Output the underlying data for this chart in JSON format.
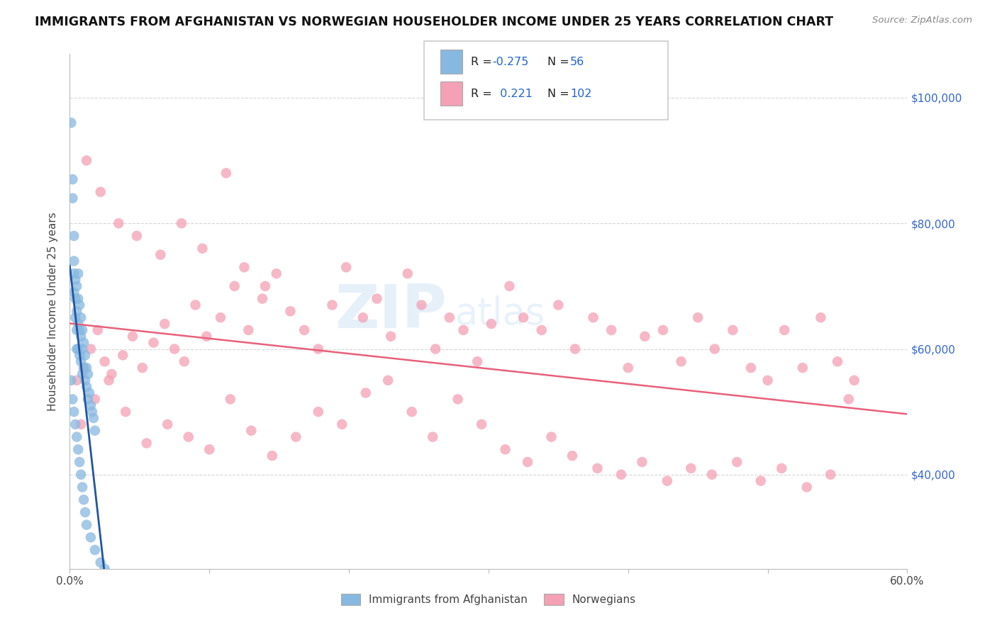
{
  "title": "IMMIGRANTS FROM AFGHANISTAN VS NORWEGIAN HOUSEHOLDER INCOME UNDER 25 YEARS CORRELATION CHART",
  "source": "Source: ZipAtlas.com",
  "ylabel": "Householder Income Under 25 years",
  "xmin": 0.0,
  "xmax": 0.6,
  "ymin": 25000,
  "ymax": 107000,
  "yticks": [
    40000,
    60000,
    80000,
    100000
  ],
  "ytick_labels": [
    "$40,000",
    "$60,000",
    "$80,000",
    "$100,000"
  ],
  "blue_color": "#87b8e0",
  "pink_color": "#f4a0b5",
  "blue_line_color": "#2155a0",
  "pink_line_color": "#e8607a",
  "watermark_zip": "ZIP",
  "watermark_atlas": "atlas",
  "background_color": "#ffffff",
  "grid_color": "#cccccc",
  "blue_scatter_x": [
    0.001,
    0.002,
    0.002,
    0.003,
    0.003,
    0.003,
    0.003,
    0.004,
    0.004,
    0.004,
    0.005,
    0.005,
    0.005,
    0.005,
    0.006,
    0.006,
    0.006,
    0.006,
    0.007,
    0.007,
    0.007,
    0.008,
    0.008,
    0.008,
    0.009,
    0.009,
    0.009,
    0.01,
    0.01,
    0.011,
    0.011,
    0.012,
    0.012,
    0.013,
    0.013,
    0.014,
    0.015,
    0.016,
    0.017,
    0.018,
    0.001,
    0.002,
    0.003,
    0.004,
    0.005,
    0.006,
    0.007,
    0.008,
    0.009,
    0.01,
    0.011,
    0.012,
    0.015,
    0.018,
    0.022,
    0.025
  ],
  "blue_scatter_y": [
    96000,
    87000,
    84000,
    78000,
    74000,
    72000,
    69000,
    71000,
    68000,
    65000,
    70000,
    66000,
    63000,
    60000,
    72000,
    68000,
    64000,
    60000,
    67000,
    63000,
    59000,
    65000,
    62000,
    58000,
    63000,
    60000,
    56000,
    61000,
    57000,
    59000,
    55000,
    57000,
    54000,
    56000,
    52000,
    53000,
    51000,
    50000,
    49000,
    47000,
    55000,
    52000,
    50000,
    48000,
    46000,
    44000,
    42000,
    40000,
    38000,
    36000,
    34000,
    32000,
    30000,
    28000,
    26000,
    25000
  ],
  "pink_scatter_x": [
    0.005,
    0.01,
    0.015,
    0.02,
    0.025,
    0.03,
    0.038,
    0.045,
    0.052,
    0.06,
    0.068,
    0.075,
    0.082,
    0.09,
    0.098,
    0.108,
    0.118,
    0.128,
    0.138,
    0.148,
    0.158,
    0.168,
    0.178,
    0.188,
    0.198,
    0.21,
    0.22,
    0.23,
    0.242,
    0.252,
    0.262,
    0.272,
    0.282,
    0.292,
    0.302,
    0.315,
    0.325,
    0.338,
    0.35,
    0.362,
    0.375,
    0.388,
    0.4,
    0.412,
    0.425,
    0.438,
    0.45,
    0.462,
    0.475,
    0.488,
    0.5,
    0.512,
    0.525,
    0.538,
    0.55,
    0.562,
    0.008,
    0.018,
    0.028,
    0.04,
    0.055,
    0.07,
    0.085,
    0.1,
    0.115,
    0.13,
    0.145,
    0.162,
    0.178,
    0.195,
    0.212,
    0.228,
    0.245,
    0.26,
    0.278,
    0.295,
    0.312,
    0.328,
    0.345,
    0.36,
    0.378,
    0.395,
    0.41,
    0.428,
    0.445,
    0.46,
    0.478,
    0.495,
    0.51,
    0.528,
    0.545,
    0.558,
    0.012,
    0.022,
    0.035,
    0.048,
    0.065,
    0.08,
    0.095,
    0.112,
    0.125,
    0.14
  ],
  "pink_scatter_y": [
    55000,
    57000,
    60000,
    63000,
    58000,
    56000,
    59000,
    62000,
    57000,
    61000,
    64000,
    60000,
    58000,
    67000,
    62000,
    65000,
    70000,
    63000,
    68000,
    72000,
    66000,
    63000,
    60000,
    67000,
    73000,
    65000,
    68000,
    62000,
    72000,
    67000,
    60000,
    65000,
    63000,
    58000,
    64000,
    70000,
    65000,
    63000,
    67000,
    60000,
    65000,
    63000,
    57000,
    62000,
    63000,
    58000,
    65000,
    60000,
    63000,
    57000,
    55000,
    63000,
    57000,
    65000,
    58000,
    55000,
    48000,
    52000,
    55000,
    50000,
    45000,
    48000,
    46000,
    44000,
    52000,
    47000,
    43000,
    46000,
    50000,
    48000,
    53000,
    55000,
    50000,
    46000,
    52000,
    48000,
    44000,
    42000,
    46000,
    43000,
    41000,
    40000,
    42000,
    39000,
    41000,
    40000,
    42000,
    39000,
    41000,
    38000,
    40000,
    52000,
    90000,
    85000,
    80000,
    78000,
    75000,
    80000,
    76000,
    88000,
    73000,
    70000
  ]
}
